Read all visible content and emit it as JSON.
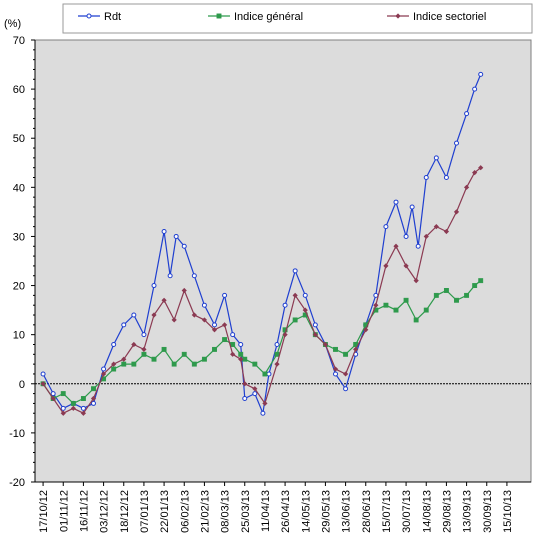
{
  "chart_data": {
    "type": "line",
    "ylabel": "(%)",
    "xlabel": "",
    "title": "",
    "ylim": [
      -20,
      70
    ],
    "yticks": [
      -20,
      -10,
      0,
      10,
      20,
      30,
      40,
      50,
      60,
      70
    ],
    "grid": "off",
    "plot_background": "#dcdcdc",
    "legend_position": "top",
    "x_tick_labels": [
      "17/10/12",
      "01/11/12",
      "16/11/12",
      "03/12/12",
      "18/12/12",
      "07/01/13",
      "22/01/13",
      "06/02/13",
      "21/02/13",
      "08/03/13",
      "25/03/13",
      "11/04/13",
      "26/04/13",
      "14/05/13",
      "29/05/13",
      "13/06/13",
      "28/06/13",
      "15/07/13",
      "30/07/13",
      "14/08/13",
      "29/08/13",
      "13/09/13",
      "30/09/13",
      "15/10/13"
    ],
    "series": [
      {
        "name": "Rdt",
        "color": "#1f3fd0",
        "marker": "circle",
        "values": [
          [
            0,
            2
          ],
          [
            0.5,
            -2
          ],
          [
            1,
            -5
          ],
          [
            1.5,
            -4
          ],
          [
            2,
            -5
          ],
          [
            2.5,
            -4
          ],
          [
            3,
            3
          ],
          [
            3.5,
            8
          ],
          [
            4,
            12
          ],
          [
            4.5,
            14
          ],
          [
            5,
            10
          ],
          [
            5.5,
            20
          ],
          [
            6,
            31
          ],
          [
            6.3,
            22
          ],
          [
            6.6,
            30
          ],
          [
            7,
            28
          ],
          [
            7.5,
            22
          ],
          [
            8,
            16
          ],
          [
            8.5,
            12
          ],
          [
            9,
            18
          ],
          [
            9.4,
            10
          ],
          [
            9.8,
            8
          ],
          [
            10,
            -3
          ],
          [
            10.5,
            -2
          ],
          [
            10.9,
            -6
          ],
          [
            11.2,
            2
          ],
          [
            11.6,
            8
          ],
          [
            12,
            16
          ],
          [
            12.5,
            23
          ],
          [
            13,
            18
          ],
          [
            13.5,
            12
          ],
          [
            14,
            8
          ],
          [
            14.5,
            2
          ],
          [
            15,
            -1
          ],
          [
            15.5,
            6
          ],
          [
            16,
            12
          ],
          [
            16.5,
            18
          ],
          [
            17,
            32
          ],
          [
            17.5,
            37
          ],
          [
            18,
            30
          ],
          [
            18.3,
            36
          ],
          [
            18.6,
            28
          ],
          [
            19,
            42
          ],
          [
            19.5,
            46
          ],
          [
            20,
            42
          ],
          [
            20.5,
            49
          ],
          [
            21,
            55
          ],
          [
            21.4,
            60
          ],
          [
            21.7,
            63
          ]
        ]
      },
      {
        "name": "Indice général",
        "color": "#2e9a4c",
        "marker": "square",
        "values": [
          [
            0,
            0
          ],
          [
            0.5,
            -3
          ],
          [
            1,
            -2
          ],
          [
            1.5,
            -4
          ],
          [
            2,
            -3
          ],
          [
            2.5,
            -1
          ],
          [
            3,
            1
          ],
          [
            3.5,
            3
          ],
          [
            4,
            4
          ],
          [
            4.5,
            4
          ],
          [
            5,
            6
          ],
          [
            5.5,
            5
          ],
          [
            6,
            7
          ],
          [
            6.5,
            4
          ],
          [
            7,
            6
          ],
          [
            7.5,
            4
          ],
          [
            8,
            5
          ],
          [
            8.5,
            7
          ],
          [
            9,
            9
          ],
          [
            9.4,
            8
          ],
          [
            9.8,
            6
          ],
          [
            10,
            5
          ],
          [
            10.5,
            4
          ],
          [
            11,
            2
          ],
          [
            11.6,
            6
          ],
          [
            12,
            11
          ],
          [
            12.5,
            13
          ],
          [
            13,
            14
          ],
          [
            13.5,
            10
          ],
          [
            14,
            8
          ],
          [
            14.5,
            7
          ],
          [
            15,
            6
          ],
          [
            15.5,
            8
          ],
          [
            16,
            12
          ],
          [
            16.5,
            15
          ],
          [
            17,
            16
          ],
          [
            17.5,
            15
          ],
          [
            18,
            17
          ],
          [
            18.5,
            13
          ],
          [
            19,
            15
          ],
          [
            19.5,
            18
          ],
          [
            20,
            19
          ],
          [
            20.5,
            17
          ],
          [
            21,
            18
          ],
          [
            21.4,
            20
          ],
          [
            21.7,
            21
          ]
        ]
      },
      {
        "name": "Indice sectoriel",
        "color": "#8b3a52",
        "marker": "diamond",
        "values": [
          [
            0,
            0
          ],
          [
            0.5,
            -3
          ],
          [
            1,
            -6
          ],
          [
            1.5,
            -5
          ],
          [
            2,
            -6
          ],
          [
            2.5,
            -3
          ],
          [
            3,
            2
          ],
          [
            3.5,
            4
          ],
          [
            4,
            5
          ],
          [
            4.5,
            8
          ],
          [
            5,
            7
          ],
          [
            5.5,
            14
          ],
          [
            6,
            17
          ],
          [
            6.5,
            13
          ],
          [
            7,
            19
          ],
          [
            7.5,
            14
          ],
          [
            8,
            13
          ],
          [
            8.5,
            11
          ],
          [
            9,
            12
          ],
          [
            9.4,
            6
          ],
          [
            9.8,
            5
          ],
          [
            10,
            0
          ],
          [
            10.5,
            -1
          ],
          [
            11,
            -4
          ],
          [
            11.6,
            4
          ],
          [
            12,
            10
          ],
          [
            12.5,
            18
          ],
          [
            13,
            15
          ],
          [
            13.5,
            10
          ],
          [
            14,
            8
          ],
          [
            14.5,
            3
          ],
          [
            15,
            2
          ],
          [
            15.5,
            7
          ],
          [
            16,
            11
          ],
          [
            16.5,
            16
          ],
          [
            17,
            24
          ],
          [
            17.5,
            28
          ],
          [
            18,
            24
          ],
          [
            18.5,
            21
          ],
          [
            19,
            30
          ],
          [
            19.5,
            32
          ],
          [
            20,
            31
          ],
          [
            20.5,
            35
          ],
          [
            21,
            40
          ],
          [
            21.4,
            43
          ],
          [
            21.7,
            44
          ]
        ]
      }
    ]
  }
}
